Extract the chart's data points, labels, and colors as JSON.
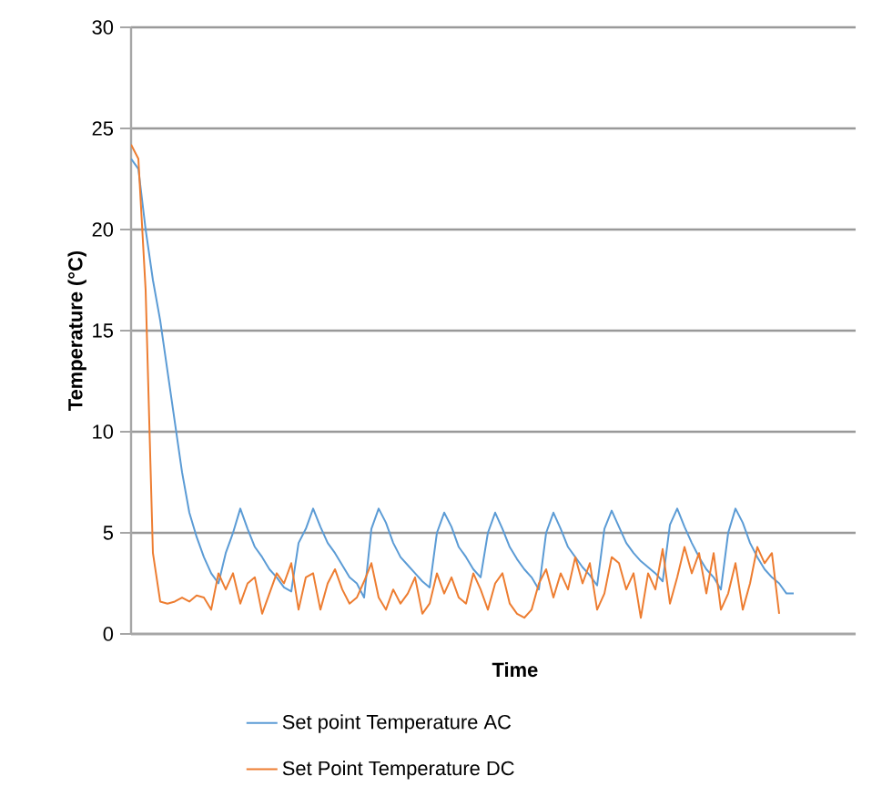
{
  "chart_data": {
    "type": "line",
    "xlabel": "Time",
    "ylabel": "Temperature (°C)",
    "categories": [
      null,
      null,
      null,
      null,
      null,
      null,
      null,
      null,
      null,
      null,
      null,
      null,
      null,
      null,
      null,
      null,
      null,
      null,
      null,
      null,
      null,
      null,
      null,
      null,
      null,
      null,
      null,
      null,
      null,
      null,
      null,
      null,
      null,
      null,
      null,
      null,
      null,
      null,
      null,
      null,
      null,
      null,
      null,
      null,
      null,
      null,
      null,
      null,
      null,
      null,
      null,
      null,
      null,
      null,
      null,
      null,
      null,
      null,
      null,
      null,
      null,
      null,
      null,
      null,
      null,
      null,
      null,
      null,
      null,
      null,
      null,
      null,
      null,
      null,
      null,
      null,
      null,
      null,
      null,
      null,
      null,
      null,
      null,
      null,
      null,
      null,
      null,
      null,
      null,
      null,
      null,
      null
    ],
    "series": [
      {
        "name": "Set point Temperature AC",
        "color": "#5b9bd5",
        "values": [
          23.5,
          23.0,
          20.0,
          17.5,
          15.5,
          13.0,
          10.5,
          8.0,
          6.0,
          4.8,
          3.8,
          3.0,
          2.5,
          4.0,
          5.0,
          6.2,
          5.2,
          4.3,
          3.8,
          3.2,
          2.8,
          2.3,
          2.1,
          4.5,
          5.2,
          6.2,
          5.3,
          4.5,
          4.0,
          3.4,
          2.8,
          2.5,
          1.8,
          5.2,
          6.2,
          5.5,
          4.5,
          3.8,
          3.4,
          3.0,
          2.6,
          2.3,
          5.0,
          6.0,
          5.3,
          4.3,
          3.8,
          3.2,
          2.8,
          5.0,
          6.0,
          5.2,
          4.3,
          3.7,
          3.2,
          2.8,
          2.2,
          5.0,
          6.0,
          5.2,
          4.3,
          3.8,
          3.3,
          2.9,
          2.4,
          5.2,
          6.1,
          5.3,
          4.5,
          4.0,
          3.6,
          3.3,
          3.0,
          2.6,
          5.4,
          6.2,
          5.3,
          4.5,
          3.8,
          3.2,
          2.8,
          2.2,
          5.0,
          6.2,
          5.5,
          4.5,
          3.8,
          3.2,
          2.8,
          2.5,
          2.0,
          2.0
        ]
      },
      {
        "name": "Set Point Temperature DC",
        "color": "#ed7d31",
        "values": [
          24.2,
          23.5,
          17,
          4,
          1.6,
          1.5,
          1.6,
          1.8,
          1.6,
          1.9,
          1.8,
          1.2,
          3.0,
          2.2,
          3.0,
          1.5,
          2.5,
          2.8,
          1.0,
          2.0,
          3.0,
          2.5,
          3.5,
          1.2,
          2.8,
          3.0,
          1.2,
          2.5,
          3.2,
          2.2,
          1.5,
          1.8,
          2.6,
          3.5,
          1.8,
          1.2,
          2.2,
          1.5,
          2.0,
          2.8,
          1.0,
          1.5,
          3.0,
          2.0,
          2.8,
          1.8,
          1.5,
          3.0,
          2.2,
          1.2,
          2.5,
          3.0,
          1.5,
          1.0,
          0.8,
          1.2,
          2.5,
          3.2,
          1.8,
          3.0,
          2.2,
          3.8,
          2.5,
          3.5,
          1.2,
          2.0,
          3.8,
          3.5,
          2.2,
          3.0,
          0.8,
          3.0,
          2.2,
          4.2,
          1.5,
          2.8,
          4.3,
          3.0,
          4.0,
          2.0,
          4.0,
          1.2,
          2.0,
          3.5,
          1.2,
          2.5,
          4.3,
          3.5,
          4.0,
          1.0,
          null,
          null
        ]
      }
    ],
    "ylim": [
      0,
      30
    ],
    "yticks": [
      0,
      5,
      10,
      15,
      20,
      25,
      30
    ],
    "grid": "y",
    "legend": "bottom",
    "marker": "none",
    "line_style": "solid"
  }
}
